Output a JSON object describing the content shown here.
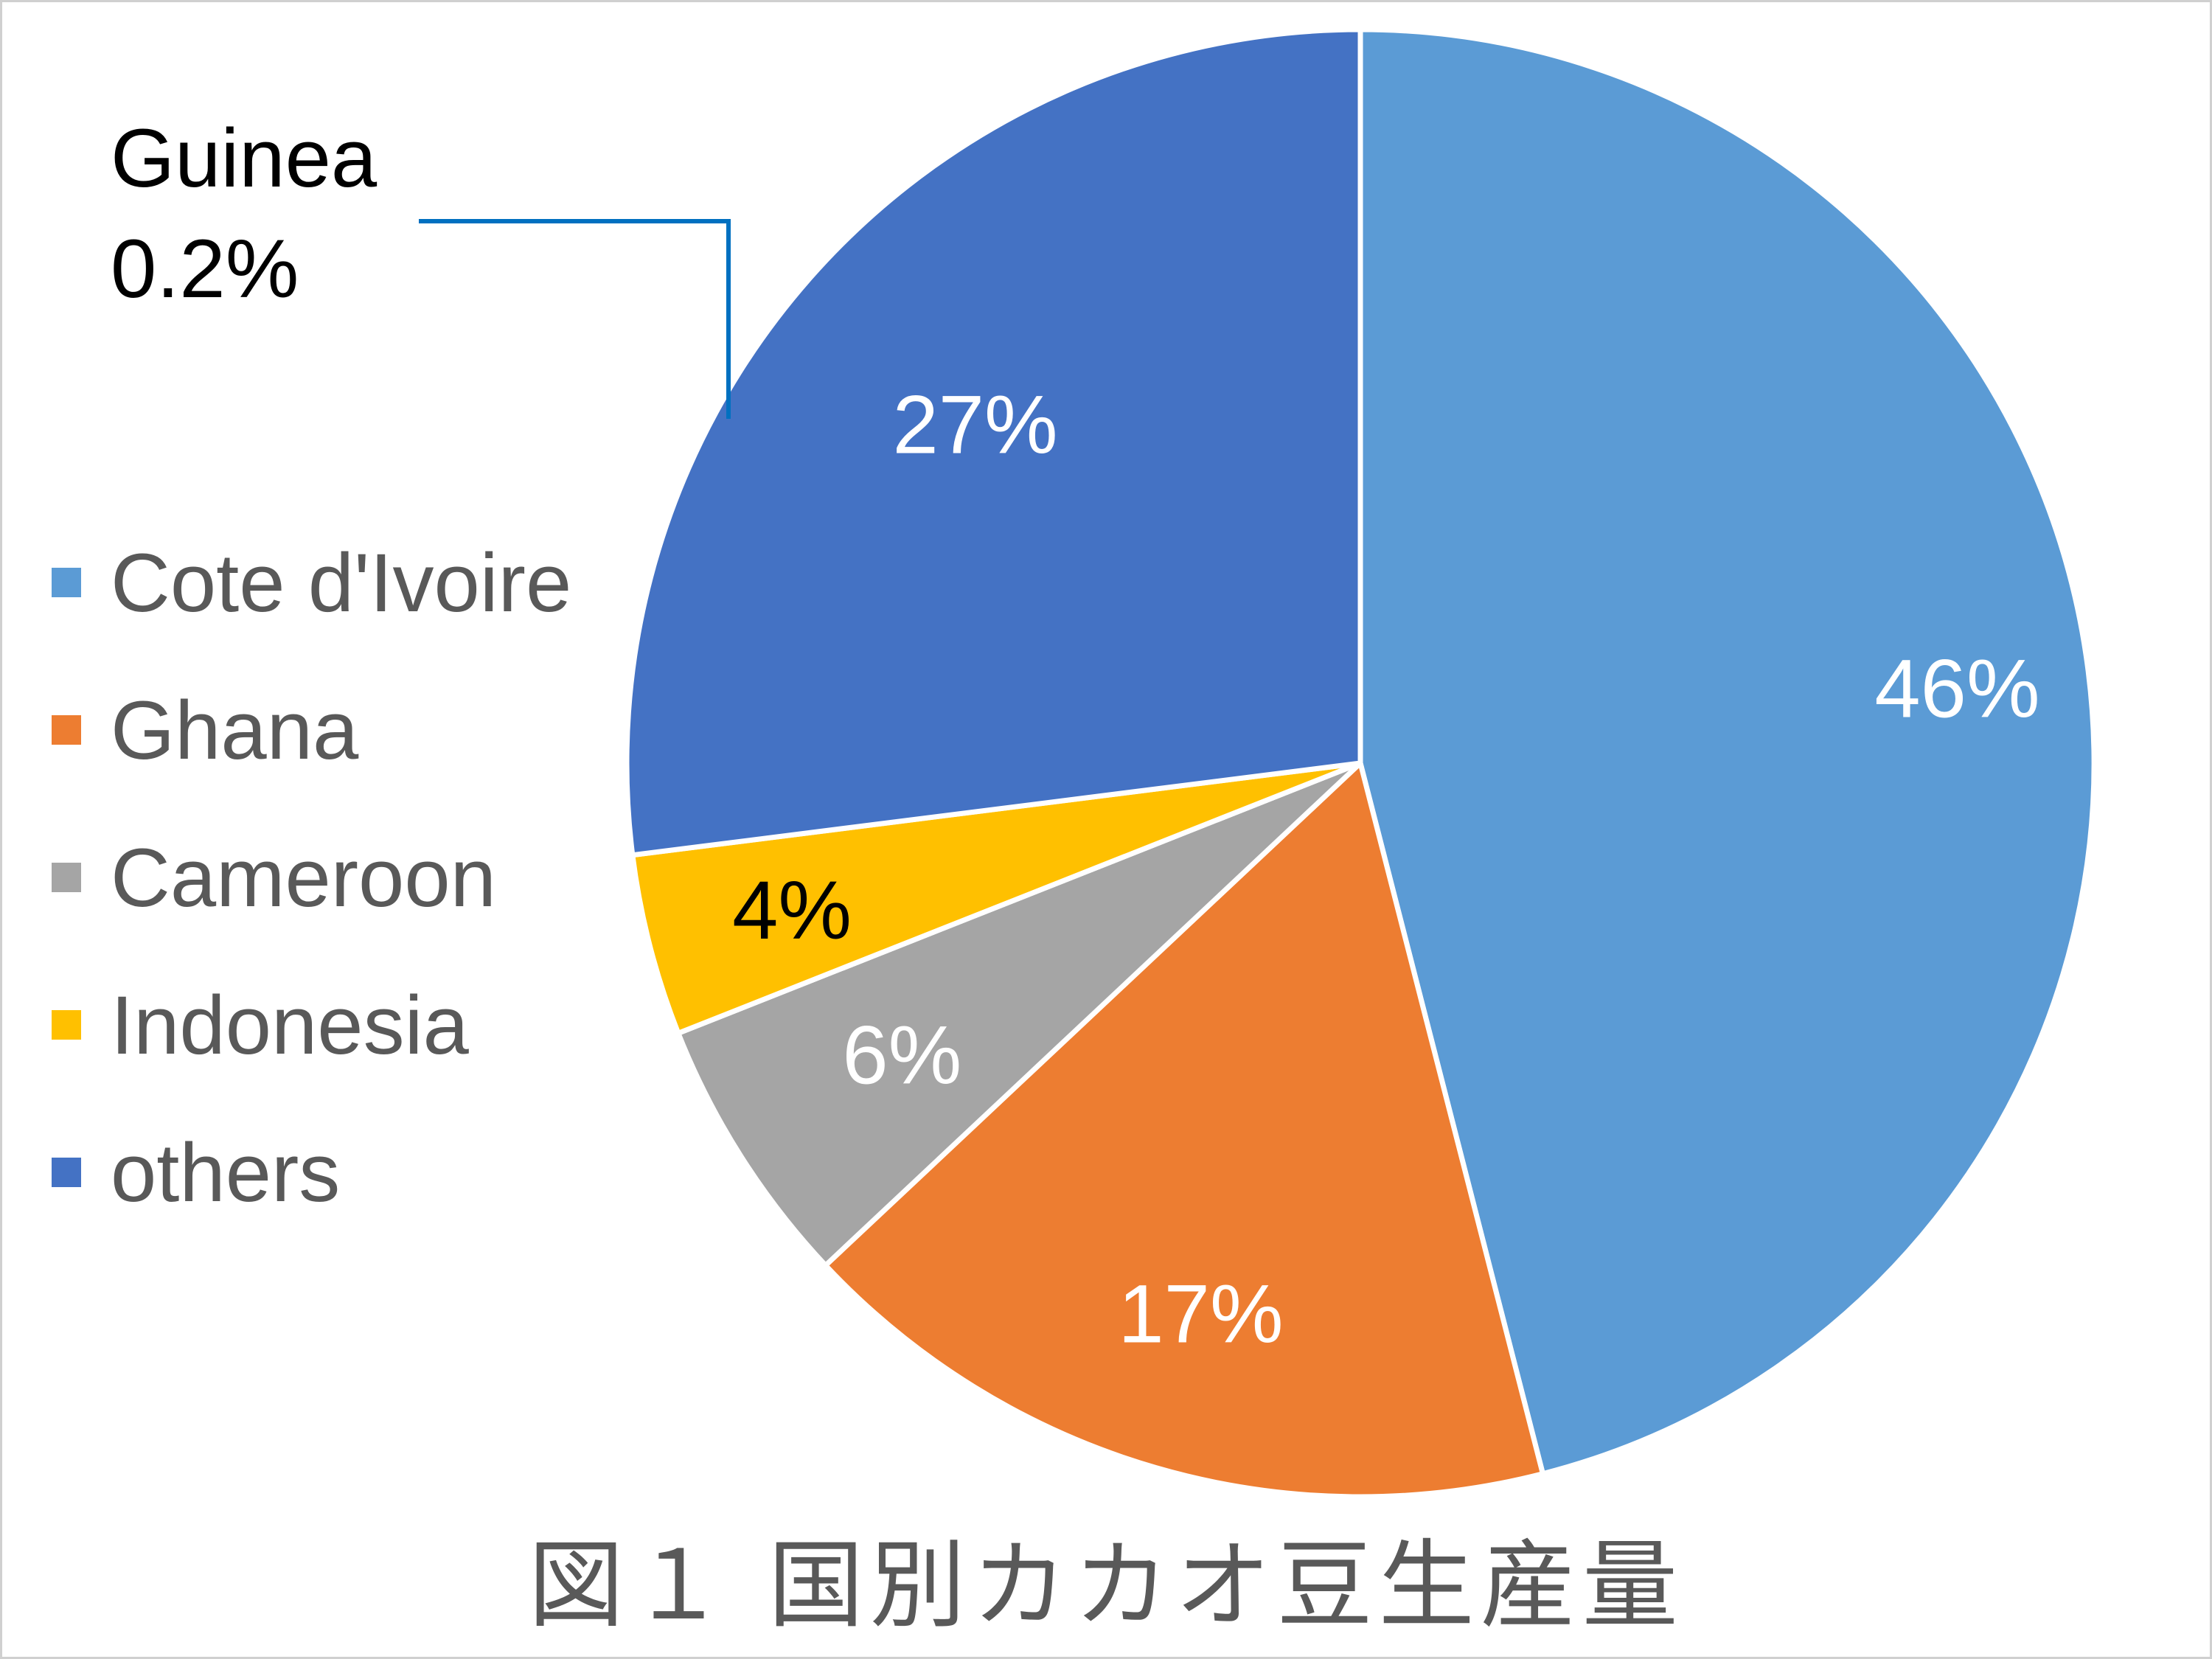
{
  "chart_data": {
    "type": "pie",
    "title": "",
    "categories": [
      "Cote d'Ivoire",
      "Ghana",
      "Cameroon",
      "Indonesia",
      "others"
    ],
    "values": [
      46,
      17,
      6,
      4,
      27
    ],
    "value_labels": [
      "46%",
      "17%",
      "6%",
      "4%",
      "27%"
    ],
    "colors": [
      "#5B9BD5",
      "#ED7D31",
      "#A5A5A5",
      "#FFC000",
      "#4472C4"
    ],
    "label_colors": [
      "#ffffff",
      "#ffffff",
      "#ffffff",
      "#000000",
      "#ffffff"
    ],
    "legend_position": "left",
    "annotation": {
      "name": "Guinea",
      "value": "0.2%",
      "line_color": "#0070C0"
    }
  },
  "caption": "図１ 国別カカオ豆生産量"
}
